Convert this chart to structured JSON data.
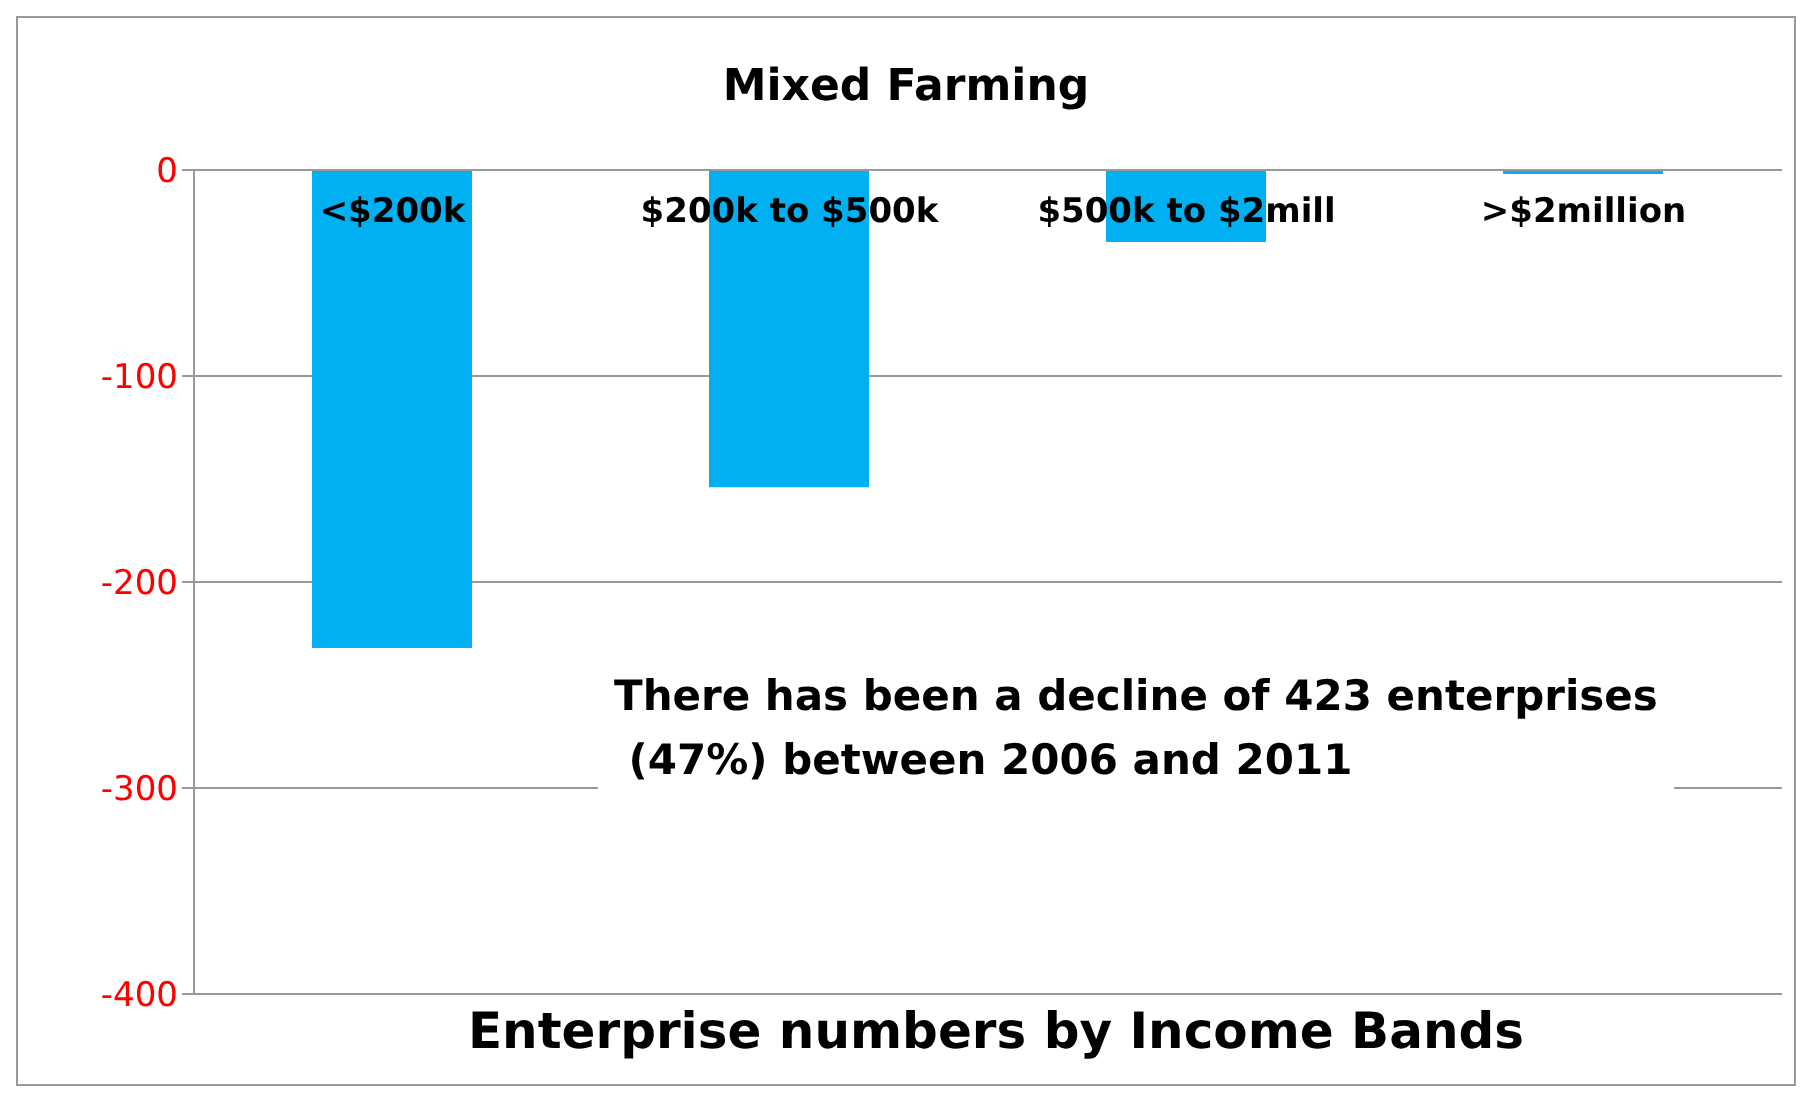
{
  "chart_data": {
    "type": "bar",
    "title": "Mixed Farming",
    "xlabel": "Enterprise numbers by Income Bands",
    "categories": [
      "<$200k",
      "$200k to $500k",
      "$500k to $2mill",
      ">$2million"
    ],
    "values": [
      -232,
      -154,
      -35,
      -2
    ],
    "color": "#00b0f0",
    "ylim": [
      -400,
      0
    ],
    "yticks": [
      0,
      -100,
      -200,
      -300,
      -400
    ],
    "grid": "y",
    "annotations": [
      "There has been a decline of 423 enterprises\n (47%) between 2006 and 2011"
    ]
  }
}
